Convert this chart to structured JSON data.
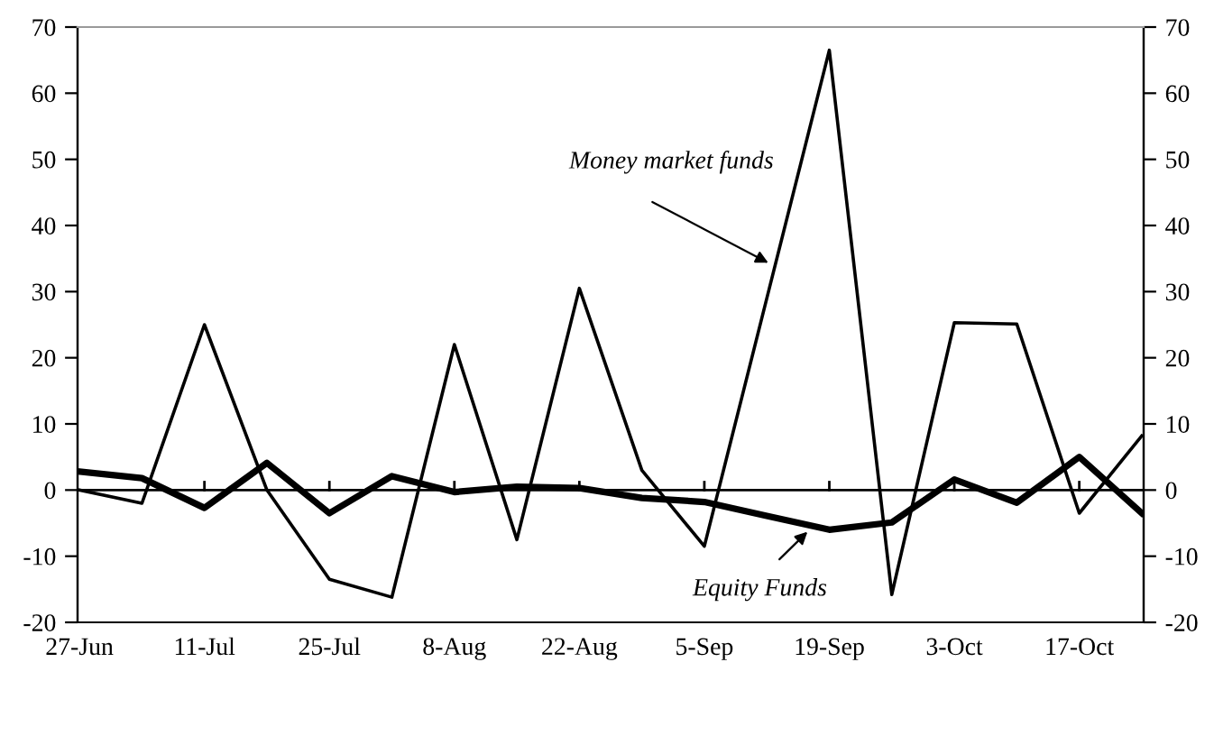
{
  "chart_data": {
    "type": "line",
    "categories": [
      "27-Jun",
      null,
      "11-Jul",
      null,
      "25-Jul",
      null,
      "8-Aug",
      null,
      "22-Aug",
      null,
      "5-Sep",
      null,
      "19-Sep",
      null,
      "3-Oct",
      null,
      "17-Oct",
      null
    ],
    "series": [
      {
        "color": "#000000",
        "values": [
          0,
          -2,
          25,
          0,
          -13.5,
          -16.2,
          22,
          -7.5,
          30.5,
          3,
          -8.5,
          29,
          66.5,
          -15.8,
          25.3,
          25.1,
          -3.5,
          8.2
        ]
      },
      {
        "color": "#000000",
        "values": [
          2.8,
          1.8,
          -2.7,
          4.1,
          -3.5,
          2.1,
          -0.3,
          0.5,
          0.3,
          -1.2,
          -1.8,
          -3.9,
          -6,
          -4.9,
          1.6,
          -1.9,
          5,
          -3.5
        ]
      }
    ],
    "ylim": [
      -20,
      70
    ],
    "yticks": [
      -20,
      -10,
      0,
      10,
      20,
      30,
      40,
      50,
      60,
      70
    ],
    "y2lim": [
      -20,
      70
    ],
    "y2ticks": [
      -20,
      -10,
      0,
      10,
      20,
      30,
      40,
      50,
      60,
      70
    ],
    "ref_lines": [
      {
        "axis": "y",
        "value": 0,
        "color": "#000000"
      }
    ],
    "annotations": [
      "Money market funds",
      "Equity Funds"
    ],
    "legend": false,
    "grid": false,
    "marker": "none",
    "line_style": "solid"
  }
}
